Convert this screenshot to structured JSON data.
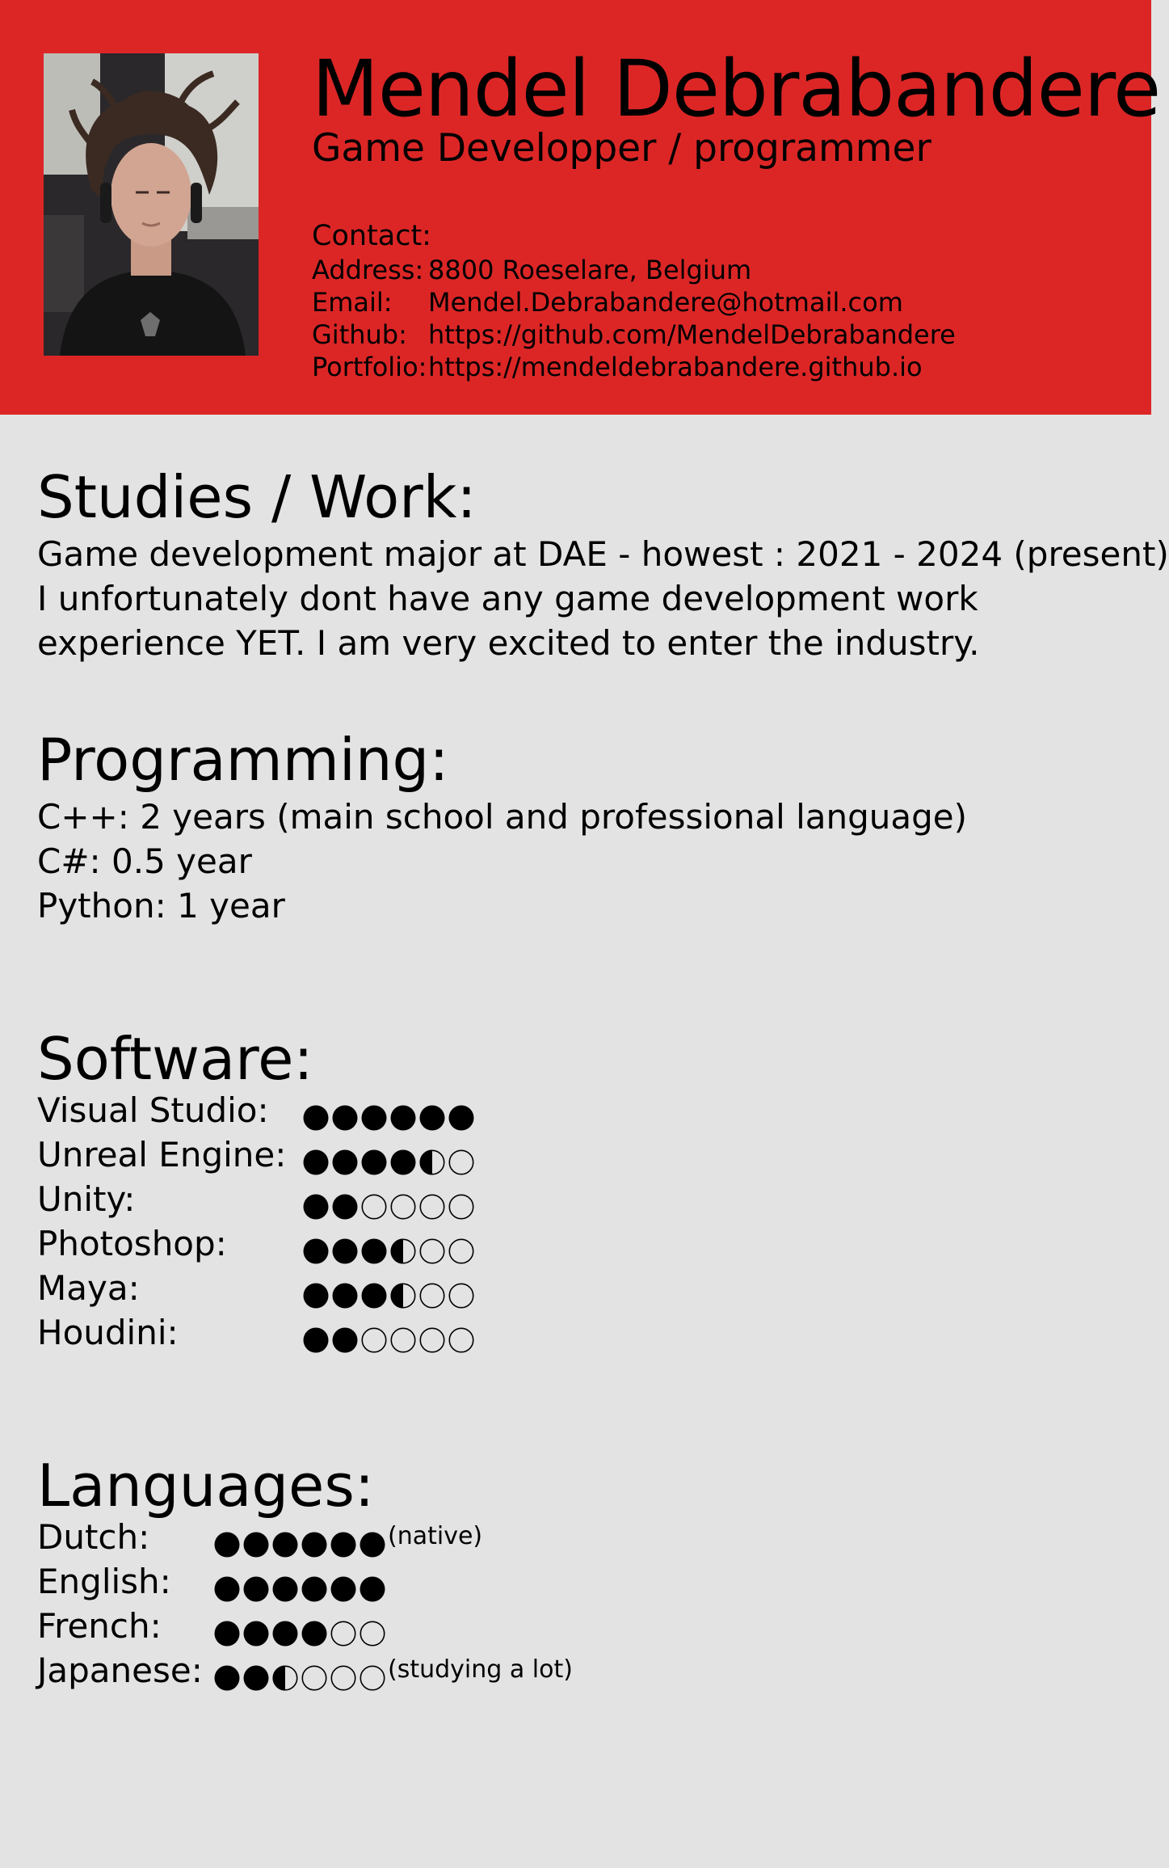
{
  "header": {
    "background": "#dc2626",
    "name": "Mendel Debrabandere",
    "role": "Game Developper / programmer",
    "contact_heading": "Contact:",
    "contact": [
      {
        "label": "Address:",
        "value": "8800 Roeselare, Belgium"
      },
      {
        "label": "Email:",
        "value": "Mendel.Debrabandere@hotmail.com"
      },
      {
        "label": "Github:",
        "value": "https://github.com/MendelDebrabandere"
      },
      {
        "label": "Portfolio:",
        "value": "https://mendeldebrabandere.github.io"
      }
    ]
  },
  "studies": {
    "title": "Studies / Work:",
    "lines": [
      "Game development major at DAE - howest : 2021 - 2024 (present)",
      "I unfortunately dont have any game development work",
      "experience YET. I am very excited to enter the industry."
    ]
  },
  "programming": {
    "title": "Programming:",
    "lines": [
      "C++: 2 years (main school and professional language)",
      "C#: 0.5 year",
      "Python: 1 year"
    ]
  },
  "software": {
    "title": "Software:",
    "max": 6,
    "items": [
      {
        "label": "Visual Studio:",
        "rating": 6
      },
      {
        "label": "Unreal Engine:",
        "rating": 4.5
      },
      {
        "label": "Unity:",
        "rating": 2
      },
      {
        "label": "Photoshop:",
        "rating": 3.5
      },
      {
        "label": "Maya:",
        "rating": 3.5
      },
      {
        "label": "Houdini:",
        "rating": 2
      }
    ]
  },
  "languages": {
    "title": "Languages:",
    "max": 6,
    "items": [
      {
        "label": "Dutch:",
        "rating": 6,
        "note": "(native)"
      },
      {
        "label": "English:",
        "rating": 6,
        "note": ""
      },
      {
        "label": "French:",
        "rating": 4,
        "note": ""
      },
      {
        "label": "Japanese:",
        "rating": 2.5,
        "note": "(studying a lot)"
      }
    ]
  }
}
